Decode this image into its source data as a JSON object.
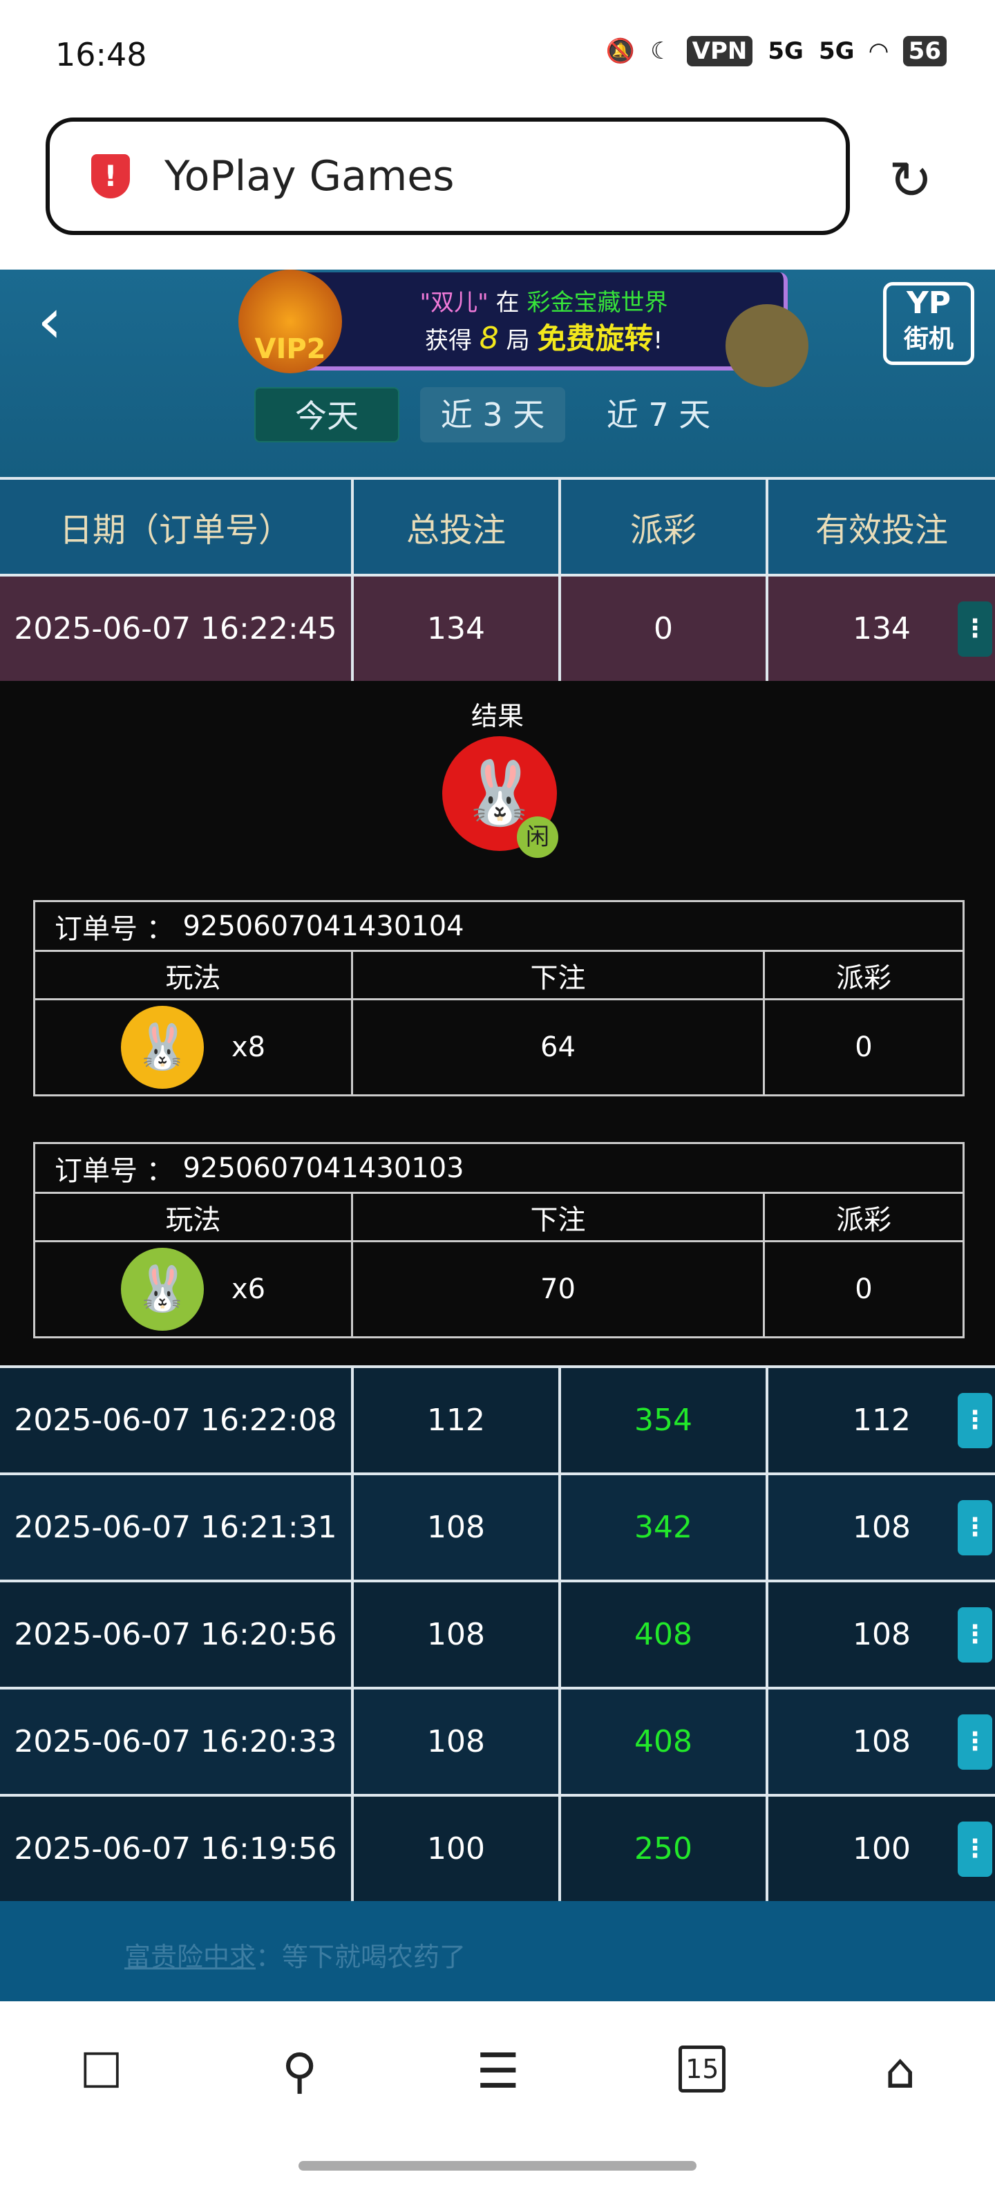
{
  "status_bar": {
    "time": "16:48",
    "network": "VPN",
    "signal1": "5G",
    "signal2": "5G",
    "battery": "56"
  },
  "browser": {
    "title": "YoPlay Games"
  },
  "game": {
    "banner": {
      "line1_quote": "\"双儿\"",
      "line1_mid": "在",
      "line1_game": "彩金宝藏世界",
      "line2_a": "获得",
      "line2_num": "8",
      "line2_b": "局",
      "line2_prize": "免费旋转",
      "line2_end": "!",
      "vip": "VIP2"
    },
    "logo": {
      "line1": "YP",
      "line2": "街机"
    },
    "tabs": [
      "今天",
      "近 3 天",
      "近 7 天"
    ],
    "table": {
      "headers": [
        "日期（订单号）",
        "总投注",
        "派彩",
        "有效投注"
      ],
      "rows": [
        {
          "date": "2025-06-07 16:22:45",
          "bet": "134",
          "payout": "0",
          "valid": "134"
        },
        {
          "date": "2025-06-07 16:22:08",
          "bet": "112",
          "payout": "354",
          "valid": "112"
        },
        {
          "date": "2025-06-07 16:21:31",
          "bet": "108",
          "payout": "342",
          "valid": "108"
        },
        {
          "date": "2025-06-07 16:20:56",
          "bet": "108",
          "payout": "408",
          "valid": "108"
        },
        {
          "date": "2025-06-07 16:20:33",
          "bet": "108",
          "payout": "408",
          "valid": "108"
        },
        {
          "date": "2025-06-07 16:19:56",
          "bet": "100",
          "payout": "250",
          "valid": "100"
        }
      ]
    },
    "detail": {
      "result_label": "结果",
      "result_badge": "闲",
      "orders": [
        {
          "order_label": "订单号  ：",
          "order_no": "9250607041430104",
          "headers": [
            "玩法",
            "下注",
            "派彩"
          ],
          "multiplier": "x8",
          "bet": "64",
          "payout": "0"
        },
        {
          "order_label": "订单号  ：",
          "order_no": "9250607041430103",
          "headers": [
            "玩法",
            "下注",
            "派彩"
          ],
          "multiplier": "x6",
          "bet": "70",
          "payout": "0"
        }
      ]
    },
    "chat": {
      "user": "富贵险中求",
      "message": "：等下就喝农药了"
    }
  },
  "nav": {
    "tabs_count": "15"
  },
  "colors": {
    "win": "#22e82a",
    "header_text": "#e8dcb8",
    "bg": "#0e4a6c"
  }
}
